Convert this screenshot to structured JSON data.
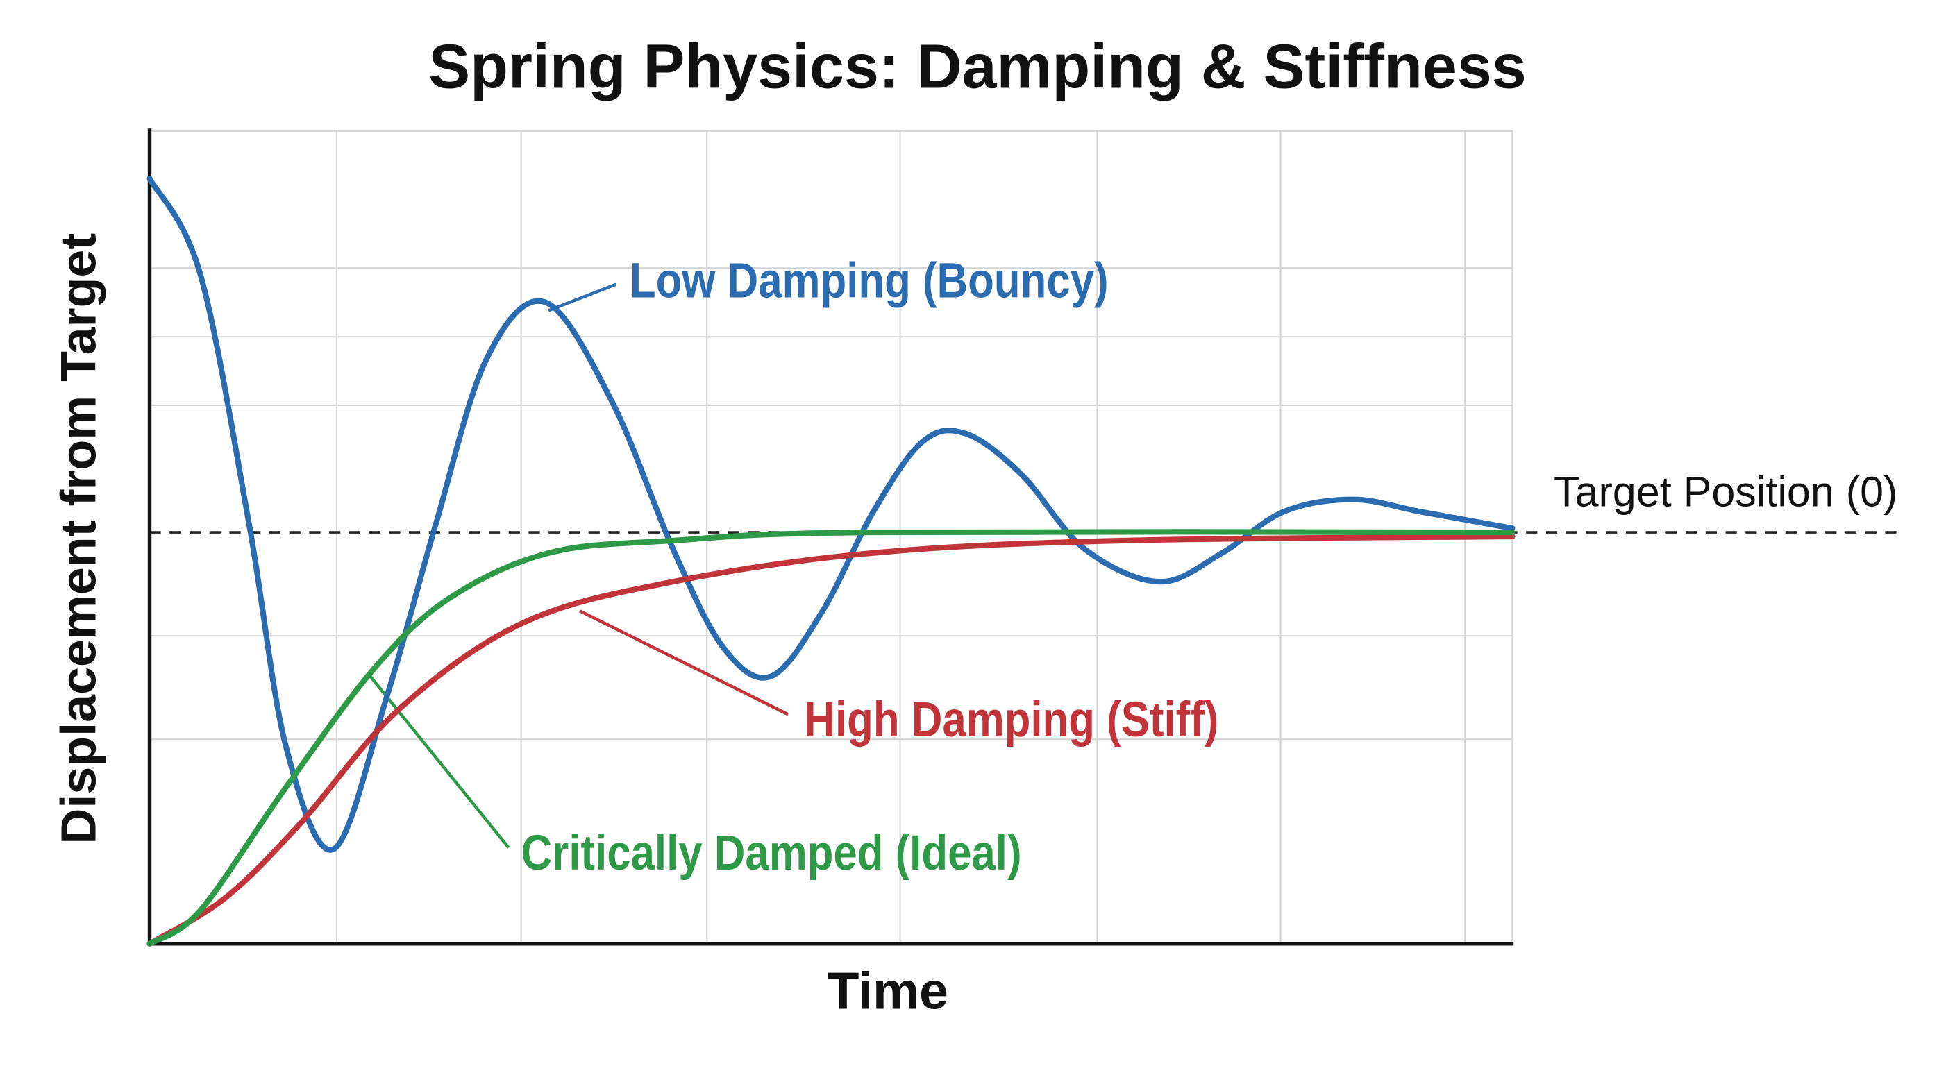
{
  "chart_data": {
    "type": "line",
    "title": "Spring Physics: Damping & Stiffness",
    "x_label": "Time",
    "y_label": "Displacement from Target",
    "xlim": [
      0,
      10
    ],
    "ylim": [
      -1,
      1
    ],
    "target_line": {
      "label": "Target Position (0)",
      "value": 0
    },
    "series": [
      {
        "name": "Low Damping (Bouncy)",
        "color": "#2b6cb0",
        "x": [
          0,
          0.37,
          0.73,
          1.0,
          1.35,
          1.74,
          2.1,
          2.47,
          2.9,
          3.39,
          3.84,
          4.21,
          4.56,
          4.94,
          5.31,
          5.67,
          5.99,
          6.4,
          6.86,
          7.41,
          7.87,
          8.32,
          8.83,
          9.33,
          10
        ],
        "values": [
          0.86,
          0.63,
          0.02,
          -0.52,
          -0.77,
          -0.4,
          0.02,
          0.42,
          0.56,
          0.32,
          -0.04,
          -0.28,
          -0.35,
          -0.19,
          0.05,
          0.22,
          0.24,
          0.14,
          -0.04,
          -0.12,
          -0.05,
          0.05,
          0.08,
          0.05,
          0.01
        ]
      },
      {
        "name": "High Damping (Stiff)",
        "color": "#c0343a",
        "x": [
          0,
          0.55,
          1.1,
          1.83,
          2.74,
          3.84,
          5.31,
          7.14,
          10
        ],
        "values": [
          -1,
          -0.89,
          -0.71,
          -0.43,
          -0.22,
          -0.12,
          -0.05,
          -0.02,
          -0.01
        ]
      },
      {
        "name": "Critically Damped (Ideal)",
        "color": "#2e9a48",
        "x": [
          0,
          0.37,
          1.0,
          1.65,
          2.2,
          2.93,
          3.84,
          5.31,
          10
        ],
        "values": [
          -1,
          -0.92,
          -0.62,
          -0.33,
          -0.16,
          -0.05,
          -0.02,
          0,
          0
        ]
      }
    ]
  }
}
